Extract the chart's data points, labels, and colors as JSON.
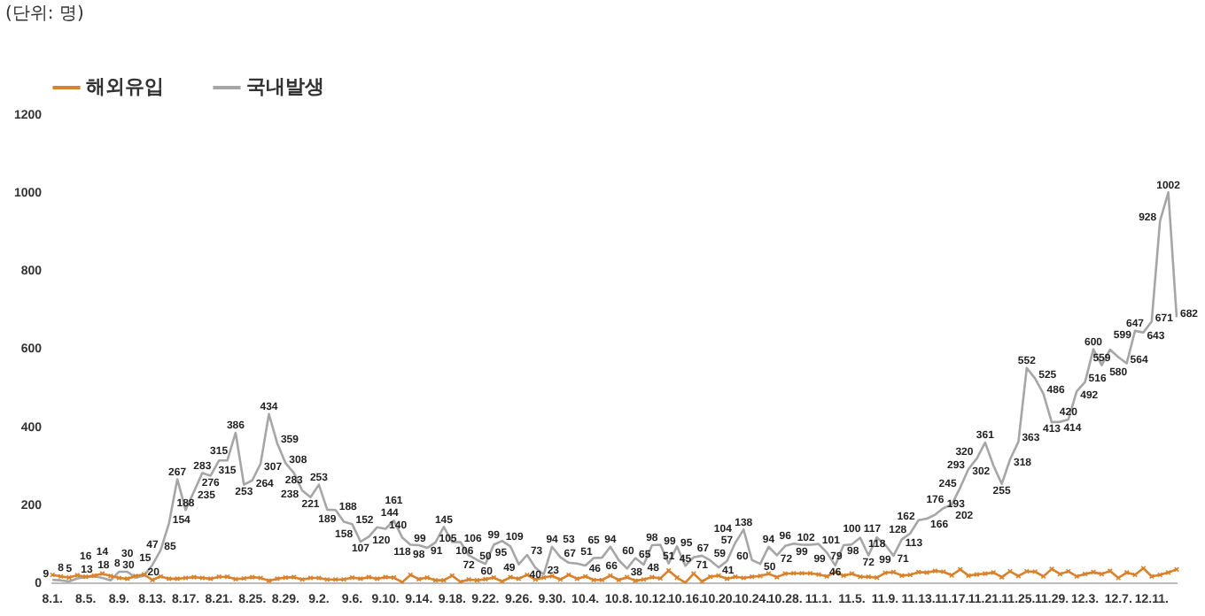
{
  "chart_data": {
    "type": "line",
    "annotations": [
      "(단위: 명)"
    ],
    "categories": [
      "8.1.",
      null,
      null,
      null,
      "8.5.",
      null,
      null,
      null,
      "8.9.",
      null,
      null,
      null,
      "8.13.",
      null,
      null,
      null,
      "8.17.",
      null,
      null,
      null,
      "8.21.",
      null,
      null,
      null,
      "8.25.",
      null,
      null,
      null,
      "8.29.",
      null,
      null,
      null,
      "9.2.",
      null,
      null,
      null,
      "9.6.",
      null,
      null,
      null,
      "9.10.",
      null,
      null,
      null,
      "9.14.",
      null,
      null,
      null,
      "9.18.",
      null,
      null,
      null,
      "9.22.",
      null,
      null,
      null,
      "9.26.",
      null,
      null,
      null,
      "9.30.",
      null,
      null,
      null,
      "10.4.",
      null,
      null,
      null,
      "10.8.",
      null,
      null,
      null,
      "10.12.",
      null,
      null,
      null,
      "10.16.",
      null,
      null,
      null,
      "10.20.",
      null,
      null,
      null,
      "10.24.",
      null,
      null,
      null,
      "10.28.",
      null,
      null,
      null,
      "11.1.",
      null,
      null,
      null,
      "11.5.",
      null,
      null,
      null,
      "11.9.",
      null,
      null,
      null,
      "11.13.",
      null,
      null,
      null,
      "11.17.",
      null,
      null,
      null,
      "11.21.",
      null,
      null,
      null,
      "11.25.",
      null,
      null,
      null,
      "11.29.",
      null,
      null,
      null,
      "12.3.",
      null,
      null,
      null,
      "12.7.",
      null,
      null,
      null,
      "12.11.",
      null,
      null,
      null
    ],
    "series": [
      {
        "name": "해외유입",
        "color": "#d9822b",
        "marker": "cross",
        "values": [
          22,
          18,
          15,
          21,
          17,
          20,
          25,
          19,
          14,
          12,
          19,
          23,
          9,
          18,
          12,
          12,
          14,
          16,
          14,
          12,
          17,
          17,
          11,
          13,
          16,
          14,
          7,
          12,
          15,
          16,
          10,
          14,
          14,
          10,
          10,
          10,
          15,
          12,
          16,
          12,
          16,
          15,
          3,
          22,
          11,
          15,
          8,
          8,
          20,
          4,
          10,
          8,
          11,
          15,
          5,
          16,
          12,
          22,
          10,
          15,
          19,
          10,
          22,
          12,
          18,
          9,
          9,
          20,
          9,
          16,
          7,
          10,
          16,
          13,
          33,
          15,
          2,
          25,
          5,
          17,
          20,
          12,
          17,
          14,
          17,
          19,
          25,
          16,
          25,
          26,
          26,
          26,
          23,
          18,
          29,
          20,
          25,
          17,
          17,
          15,
          27,
          29,
          20,
          22,
          29,
          28,
          32,
          30,
          21,
          36,
          20,
          23,
          25,
          28,
          16,
          31,
          19,
          31,
          30,
          18,
          37,
          24,
          31,
          18,
          24,
          29,
          24,
          32,
          14,
          28,
          22,
          39,
          18,
          22,
          28,
          36
        ]
      },
      {
        "name": "국내발생",
        "color": "#a6a6a6",
        "marker": "none",
        "values": [
          9,
          8,
          5,
          13,
          16,
          18,
          14,
          8,
          30,
          30,
          15,
          20,
          47,
          85,
          154,
          267,
          188,
          235,
          283,
          276,
          315,
          315,
          386,
          253,
          264,
          307,
          434,
          359,
          308,
          283,
          238,
          221,
          253,
          189,
          188,
          158,
          152,
          107,
          120,
          144,
          140,
          161,
          118,
          99,
          98,
          91,
          105,
          145,
          106,
          106,
          72,
          60,
          50,
          99,
          109,
          95,
          49,
          73,
          40,
          23,
          94,
          67,
          53,
          51,
          46,
          65,
          66,
          94,
          60,
          38,
          65,
          48,
          98,
          99,
          51,
          95,
          45,
          67,
          71,
          59,
          41,
          57,
          104,
          138,
          60,
          50,
          94,
          72,
          96,
          102,
          99,
          99,
          101,
          79,
          46,
          98,
          100,
          117,
          72,
          118,
          99,
          71,
          113,
          128,
          162,
          166,
          176,
          193,
          202,
          245,
          293,
          320,
          361,
          302,
          255,
          318,
          363,
          552,
          525,
          486,
          413,
          414,
          420,
          492,
          516,
          600,
          559,
          599,
          580,
          564,
          647,
          643,
          671,
          928,
          1002,
          682
        ],
        "value_labels": [
          "9",
          "8",
          "5",
          "13",
          "16",
          "18",
          "14",
          "8",
          "30",
          "30",
          "15",
          "20",
          "47",
          "85",
          "154",
          "267",
          "188",
          "235",
          "283",
          "276",
          "315",
          "315",
          "386",
          "253",
          "264",
          "307",
          "434",
          "359",
          "308",
          "283",
          "238",
          "221",
          "253",
          "189",
          "188",
          "158",
          "152",
          "107",
          "120",
          "144",
          "140",
          "161",
          "118",
          "99",
          "98",
          "91",
          "105",
          "145",
          "106",
          "106",
          "72",
          "60",
          "50",
          "99",
          "109",
          "95",
          "49",
          "73",
          "40",
          "23",
          "94",
          "67",
          "53",
          "51",
          "46",
          "65",
          "66",
          "94",
          "60",
          "38",
          "65",
          "48",
          "98",
          "99",
          "51",
          "95",
          "45",
          "67",
          "71",
          "59",
          "41",
          "57",
          "104",
          "138",
          "60",
          "50",
          "94",
          "72",
          "96",
          "102",
          "99",
          "99",
          "101",
          "79",
          "46",
          "98",
          "100",
          "117",
          "72",
          "118",
          "99",
          "71",
          "113",
          "128",
          "162",
          "166",
          "176",
          "193",
          "202",
          "245",
          "293",
          "320",
          "361",
          "302",
          "255",
          "318",
          "363",
          "552",
          "525",
          "486",
          "413",
          "414",
          "420",
          "492",
          "516",
          "600",
          "559",
          "599",
          "580",
          "564",
          "647",
          "643",
          "671",
          "928",
          "1002",
          "682"
        ]
      }
    ],
    "ylim": [
      0,
      1200
    ],
    "yticks": [
      0,
      200,
      400,
      600,
      800,
      1000,
      1200
    ],
    "grid": false,
    "legend": "top left",
    "line_style": "solid"
  }
}
